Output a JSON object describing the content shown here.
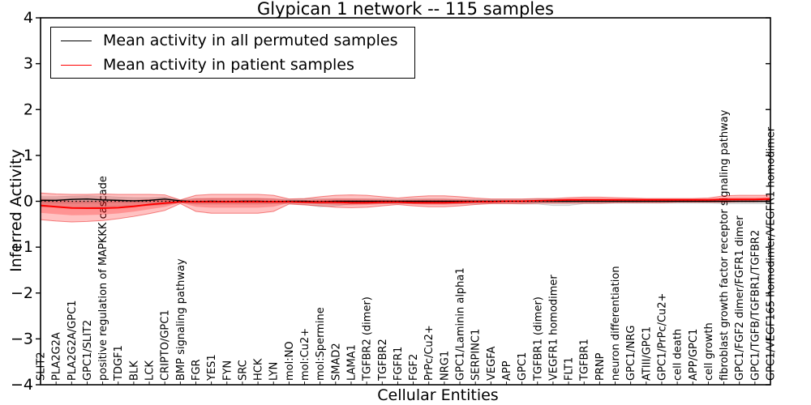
{
  "title": "Glypican 1 network -- 115 samples",
  "axes": {
    "x_label": "Cellular Entities",
    "y_label": "Inferred Activity",
    "y_ticks": [
      4,
      3,
      2,
      1,
      0,
      -1,
      -2,
      -3,
      -4
    ],
    "y_min": -4,
    "y_max": 4
  },
  "chart_data": {
    "type": "line",
    "title": "Glypican 1 network -- 115 samples",
    "xlabel": "Cellular Entities",
    "ylabel": "Inferred Activity",
    "ylim": [
      -4,
      4
    ],
    "grid": false,
    "legend_position": "upper left",
    "reference_line": {
      "y": 0,
      "style": "dotted",
      "color": "#000000"
    },
    "categories": [
      "SLIT2",
      "PLA2G2A",
      "PLA2G2A/GPC1",
      "GPC1/SLIT2",
      "positive regulation of MAPKKK cascade",
      "TDGF1",
      "BLK",
      "LCK",
      "CRIPTO/GPC1",
      "BMP signaling pathway",
      "FGR",
      "YES1",
      "FYN",
      "SRC",
      "HCK",
      "LYN",
      "mol:NO",
      "mol:Cu2+",
      "mol:Spermine",
      "SMAD2",
      "LAMA1",
      "TGFBR2 (dimer)",
      "TGFBR2",
      "FGFR1",
      "FGF2",
      "PrPc/Cu2+",
      "NRG1",
      "GPC1/Laminin alpha1",
      "SERPINC1",
      "VEGFA",
      "APP",
      "GPC1",
      "TGFBR1 (dimer)",
      "VEGFR1 homodimer",
      "FLT1",
      "TGFBR1",
      "PRNP",
      "neuron differentiation",
      "GPC1/NRG",
      "ATIII/GPC1",
      "GPC1/PrPc/Cu2+",
      "cell death",
      "APP/GPC1",
      "cell growth",
      "fibroblast growth factor receptor signaling pathway",
      "GPC1/FGF2 dimer/FGFR1 dimer",
      "GPC1/TGFB/TGFBR1/TGFBR2",
      "GPC1/VEGF165 homodimer/VEGFR1 homodimer"
    ],
    "series": [
      {
        "name": "Mean activity in all permuted samples",
        "line_color": "#000000",
        "line_width": 1.4,
        "band_fill": "rgba(0,0,0,0.10)",
        "band_edge": "rgba(0,0,0,0.16)",
        "values": [
          0.02,
          0.02,
          0.04,
          0.05,
          0.03,
          0.02,
          0.01,
          0.02,
          0.05,
          0.01,
          -0.01,
          0.0,
          -0.01,
          0.0,
          0.0,
          -0.01,
          0.0,
          0.0,
          -0.01,
          0.0,
          0.0,
          0.0,
          0.0,
          0.0,
          0.0,
          0.0,
          0.0,
          0.0,
          0.0,
          0.0,
          0.0,
          0.0,
          0.0,
          0.0,
          0.0,
          0.0,
          0.0,
          0.0,
          0.0,
          0.0,
          0.0,
          0.0,
          0.0,
          0.0,
          0.0,
          0.0,
          0.0,
          0.0
        ],
        "band_upper": [
          0.1,
          0.1,
          0.11,
          0.12,
          0.11,
          0.09,
          0.08,
          0.08,
          0.09,
          0.03,
          0.06,
          0.06,
          0.06,
          0.06,
          0.06,
          0.05,
          0.04,
          0.05,
          0.05,
          0.05,
          0.05,
          0.05,
          0.05,
          0.04,
          0.05,
          0.05,
          0.05,
          0.04,
          0.04,
          0.04,
          0.04,
          0.04,
          0.05,
          0.05,
          0.04,
          0.04,
          0.04,
          0.04,
          0.04,
          0.04,
          0.04,
          0.04,
          0.04,
          0.04,
          0.05,
          0.05,
          0.05,
          0.05
        ],
        "band_lower": [
          -0.12,
          -0.12,
          -0.14,
          -0.14,
          -0.12,
          -0.1,
          -0.1,
          -0.09,
          -0.07,
          -0.03,
          -0.06,
          -0.06,
          -0.06,
          -0.06,
          -0.06,
          -0.05,
          -0.05,
          -0.07,
          -0.12,
          -0.1,
          -0.06,
          -0.05,
          -0.05,
          -0.05,
          -0.05,
          -0.05,
          -0.05,
          -0.05,
          -0.05,
          -0.05,
          -0.05,
          -0.06,
          -0.06,
          -0.09,
          -0.09,
          -0.05,
          -0.05,
          -0.04,
          -0.04,
          -0.04,
          -0.04,
          -0.04,
          -0.04,
          -0.04,
          -0.05,
          -0.05,
          -0.05,
          -0.05
        ]
      },
      {
        "name": "Mean activity in patient samples",
        "line_color": "#ff0000",
        "line_width": 2.0,
        "band_fill": "rgba(255,0,0,0.24)",
        "band_edge": "rgba(235,40,40,0.55)",
        "values": [
          -0.09,
          -0.12,
          -0.145,
          -0.15,
          -0.15,
          -0.14,
          -0.11,
          -0.07,
          -0.04,
          -0.01,
          -0.01,
          -0.01,
          -0.01,
          -0.01,
          -0.01,
          -0.01,
          -0.01,
          -0.02,
          -0.02,
          -0.02,
          -0.03,
          -0.03,
          -0.02,
          -0.02,
          -0.03,
          -0.03,
          -0.03,
          -0.02,
          -0.01,
          -0.01,
          0.0,
          0.0,
          0.01,
          0.02,
          0.03,
          0.03,
          0.03,
          0.03,
          0.03,
          0.03,
          0.03,
          0.03,
          0.03,
          0.03,
          0.04,
          0.04,
          0.04,
          0.05
        ],
        "band_upper": [
          0.18,
          0.16,
          0.15,
          0.15,
          0.16,
          0.15,
          0.15,
          0.15,
          0.14,
          0.03,
          0.13,
          0.15,
          0.15,
          0.15,
          0.15,
          0.13,
          0.05,
          0.06,
          0.1,
          0.13,
          0.14,
          0.13,
          0.1,
          0.07,
          0.1,
          0.12,
          0.12,
          0.1,
          0.07,
          0.05,
          0.05,
          0.05,
          0.06,
          0.06,
          0.08,
          0.09,
          0.09,
          0.08,
          0.07,
          0.06,
          0.06,
          0.06,
          0.06,
          0.07,
          0.12,
          0.13,
          0.13,
          0.13
        ],
        "band_lower": [
          -0.4,
          -0.43,
          -0.45,
          -0.44,
          -0.42,
          -0.38,
          -0.33,
          -0.27,
          -0.2,
          -0.05,
          -0.22,
          -0.26,
          -0.26,
          -0.26,
          -0.26,
          -0.22,
          -0.06,
          -0.08,
          -0.1,
          -0.13,
          -0.14,
          -0.13,
          -0.1,
          -0.07,
          -0.1,
          -0.12,
          -0.12,
          -0.1,
          -0.07,
          -0.05,
          -0.05,
          -0.05,
          -0.04,
          -0.04,
          -0.04,
          -0.04,
          -0.04,
          -0.03,
          -0.03,
          -0.03,
          -0.03,
          -0.02,
          -0.02,
          -0.02,
          -0.02,
          -0.01,
          -0.01,
          0.0
        ]
      }
    ]
  },
  "colors": {
    "axis": "#000000",
    "background": "#ffffff",
    "permuted_line": "#000000",
    "patient_line": "#ff0000"
  }
}
